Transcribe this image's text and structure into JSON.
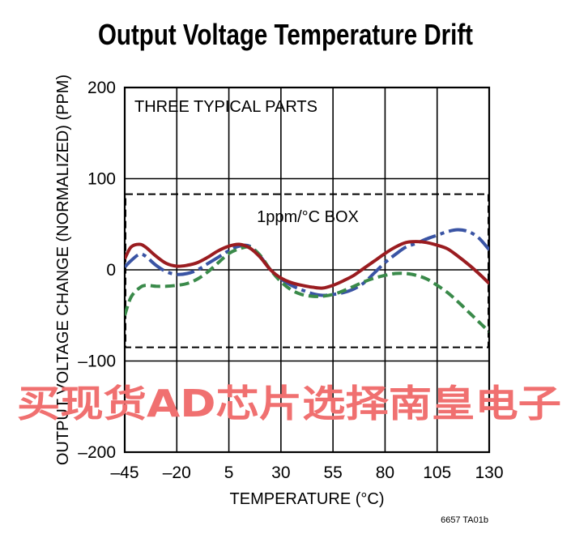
{
  "chart_data": {
    "type": "line",
    "title": "Output Voltage Temperature Drift",
    "xlabel": "TEMPERATURE (°C)",
    "ylabel": "OUTPUT VOLTAGE CHANGE (NORMALIZED) (PPM)",
    "xlim": [
      -45,
      130
    ],
    "ylim": [
      -200,
      200
    ],
    "xticks": [
      -45,
      -20,
      5,
      30,
      55,
      80,
      105,
      130
    ],
    "xtick_labels": [
      "–45",
      "–20",
      "5",
      "30",
      "55",
      "80",
      "105",
      "130"
    ],
    "yticks": [
      200,
      100,
      0,
      -100,
      -200
    ],
    "ytick_labels": [
      "200",
      "100",
      "0",
      "–100",
      "–200"
    ],
    "grid": true,
    "annotations": [
      "THREE TYPICAL PARTS",
      "1ppm/°C BOX"
    ],
    "box": {
      "x": [
        -45,
        130
      ],
      "y": [
        -85,
        83
      ]
    },
    "series": [
      {
        "color": "#3a54a4",
        "style": "dash-dot",
        "x": [
          -45,
          -42,
          -38,
          -35,
          -30,
          -25,
          -20,
          -15,
          -10,
          -5,
          0,
          5,
          10,
          15,
          20,
          25,
          30,
          35,
          40,
          45,
          50,
          55,
          60,
          65,
          70,
          75,
          80,
          85,
          90,
          95,
          100,
          105,
          110,
          115,
          120,
          125,
          130
        ],
        "values": [
          3,
          10,
          17,
          15,
          5,
          -2,
          -5,
          -4,
          0,
          7,
          14,
          21,
          26,
          26,
          15,
          0,
          -10,
          -17,
          -22,
          -26,
          -28,
          -27,
          -25,
          -21,
          -14,
          -3,
          8,
          17,
          25,
          29,
          34,
          38,
          42,
          44,
          42,
          35,
          22
        ]
      },
      {
        "color": "#3a8a4a",
        "style": "dashed",
        "x": [
          -45,
          -42,
          -38,
          -35,
          -30,
          -25,
          -20,
          -15,
          -10,
          -5,
          0,
          5,
          10,
          15,
          20,
          25,
          30,
          35,
          40,
          45,
          50,
          55,
          60,
          65,
          70,
          75,
          80,
          85,
          90,
          95,
          100,
          105,
          110,
          115,
          120,
          125,
          130
        ],
        "values": [
          -50,
          -30,
          -20,
          -17,
          -18,
          -18,
          -17,
          -15,
          -10,
          -2,
          8,
          18,
          23,
          25,
          16,
          0,
          -13,
          -22,
          -27,
          -29,
          -29,
          -27,
          -23,
          -18,
          -13,
          -9,
          -6,
          -4,
          -4,
          -6,
          -10,
          -17,
          -25,
          -35,
          -46,
          -57,
          -68
        ]
      },
      {
        "color": "#9a1c20",
        "style": "solid",
        "x": [
          -45,
          -42,
          -38,
          -35,
          -30,
          -25,
          -20,
          -15,
          -10,
          -5,
          0,
          5,
          10,
          15,
          20,
          25,
          30,
          35,
          40,
          45,
          50,
          55,
          60,
          65,
          70,
          75,
          80,
          85,
          90,
          95,
          100,
          105,
          110,
          115,
          120,
          125,
          130
        ],
        "values": [
          12,
          25,
          28,
          25,
          15,
          7,
          4,
          5,
          8,
          14,
          21,
          26,
          28,
          24,
          14,
          0,
          -9,
          -14,
          -17,
          -19,
          -20,
          -17,
          -12,
          -6,
          2,
          10,
          18,
          25,
          30,
          31,
          30,
          27,
          23,
          15,
          6,
          -4,
          -15
        ]
      }
    ]
  },
  "figure_id": "6657 TA01b",
  "watermark": "买现货AD芯片选择南皇电子"
}
